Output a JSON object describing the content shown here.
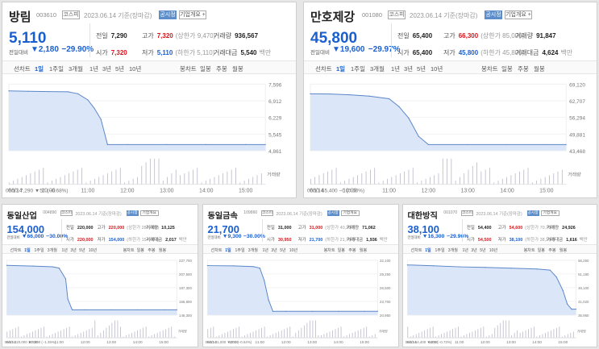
{
  "colors": {
    "rise": "#d6161c",
    "fall": "#1a5fcf",
    "area": "#dbe7f8",
    "line": "#5a86c9"
  },
  "panels": [
    {
      "name": "방림",
      "code": "003610",
      "market": "코스피",
      "date": "2023.06.14 기준(장마감)",
      "btn_info": "공시정",
      "btn_detail": "기업개요 +",
      "price": "5,110",
      "change_label": "전일대비",
      "change_icon": "down-triangle-icon",
      "change_value": "▼2,180",
      "change_rate": "−29.90%",
      "stats": {
        "prev": {
          "label": "전일",
          "value": "7,290"
        },
        "high": {
          "label": "고가",
          "value": "7,320",
          "sub": "(상한가 9,470)"
        },
        "volume": {
          "label": "거래량",
          "value": "936,567"
        },
        "open": {
          "label": "시가",
          "value": "7,320"
        },
        "low": {
          "label": "저가",
          "value": "5,110",
          "sub": "(하한가 5,110)"
        },
        "amount": {
          "label": "거래대금",
          "value": "5,540",
          "unit": "백만"
        }
      },
      "tabs": [
        "선차트",
        "1일",
        "1주일",
        "3개월",
        "1년",
        "3년",
        "5년",
        "10년"
      ],
      "candle_tabs": [
        "봉차트",
        "일봉",
        "주봉",
        "월봉"
      ],
      "selected_tab": "1일",
      "y_ticks": [
        "7,596",
        "6,912",
        "6,229",
        "5,545",
        "4,861"
      ],
      "volume_label": "거래량",
      "x_ticks": [
        "06/14",
        "10:00",
        "11:00",
        "12:00",
        "13:00",
        "14:00",
        "15:00"
      ],
      "footer": "06/13  7,290  ▼50 (−0.68%)",
      "chart_data": {
        "type": "area",
        "x": [
          "09:00",
          "09:30",
          "10:00",
          "10:30",
          "10:45",
          "11:00",
          "11:10",
          "11:20",
          "11:30",
          "12:00",
          "13:00",
          "14:00",
          "15:00",
          "15:30"
        ],
        "values": [
          7320,
          7300,
          7290,
          7280,
          7200,
          6950,
          6600,
          6150,
          5110,
          5110,
          5110,
          5110,
          5110,
          5110
        ],
        "ylim": [
          4861,
          7596
        ]
      }
    },
    {
      "name": "만호제강",
      "code": "001080",
      "market": "코스피",
      "date": "2023.06.14 기준(장마감)",
      "btn_info": "공시정",
      "btn_detail": "기업개요 +",
      "price": "45,800",
      "change_label": "전일대비",
      "change_icon": "down-triangle-icon",
      "change_value": "▼19,600",
      "change_rate": "−29.97%",
      "stats": {
        "prev": {
          "label": "전일",
          "value": "65,400"
        },
        "high": {
          "label": "고가",
          "value": "66,300",
          "sub": "(상한가 85,000)"
        },
        "volume": {
          "label": "거래량",
          "value": "91,847"
        },
        "open": {
          "label": "시가",
          "value": "65,400"
        },
        "low": {
          "label": "저가",
          "value": "45,800",
          "sub": "(하한가 45,800)"
        },
        "amount": {
          "label": "거래대금",
          "value": "4,624",
          "unit": "백만"
        }
      },
      "tabs": [
        "선차트",
        "1일",
        "1주일",
        "3개월",
        "1년",
        "3년",
        "5년",
        "10년"
      ],
      "candle_tabs": [
        "봉차트",
        "일봉",
        "주봉",
        "월봉"
      ],
      "selected_tab": "1일",
      "y_ticks": [
        "69,120",
        "62,707",
        "56,294",
        "49,881",
        "43,468"
      ],
      "volume_label": "거래량",
      "x_ticks": [
        "06/14",
        "10:00",
        "11:00",
        "12:00",
        "13:00",
        "14:00",
        "15:00"
      ],
      "footer": "06/13  65,400  −0 (0.00%)",
      "chart_data": {
        "type": "area",
        "x": [
          "09:00",
          "09:30",
          "10:00",
          "10:30",
          "11:00",
          "11:15",
          "11:30",
          "11:45",
          "12:00",
          "13:00",
          "14:00",
          "15:00",
          "15:30"
        ],
        "values": [
          65400,
          65300,
          65000,
          64500,
          63500,
          60500,
          56000,
          49000,
          45800,
          45800,
          45800,
          45800,
          45800
        ],
        "ylim": [
          43468,
          69120
        ]
      }
    },
    {
      "name": "동일산업",
      "code": "004890",
      "market": "코스피",
      "date": "2023.06.14 기준(장마감)",
      "btn_info": "공시정",
      "btn_detail": "기업개요",
      "price": "154,000",
      "change_label": "전일대비",
      "change_icon": "down-triangle-icon",
      "change_value": "▼66,000",
      "change_rate": "−30.00%",
      "stats": {
        "prev": {
          "label": "전일",
          "value": "220,000"
        },
        "high": {
          "label": "고가",
          "value": "220,000",
          "sub": "(상한가 286,000)"
        },
        "volume": {
          "label": "거래량",
          "value": "10,125"
        },
        "open": {
          "label": "시가",
          "value": "220,000"
        },
        "low": {
          "label": "저가",
          "value": "154,000",
          "sub": "(하한가 154,000)"
        },
        "amount": {
          "label": "거래대금",
          "value": "2,017",
          "unit": "백만"
        }
      },
      "tabs": [
        "선차트",
        "1일",
        "1주일",
        "3개월",
        "1년",
        "3년",
        "5년",
        "10년"
      ],
      "candle_tabs": [
        "봉차트",
        "일봉",
        "주봉",
        "월봉"
      ],
      "selected_tab": "1일",
      "y_ticks": [
        "227,700",
        "207,500",
        "187,300",
        "166,800",
        "146,300"
      ],
      "volume_label": "거래량",
      "x_ticks": [
        "06/14",
        "10:00",
        "11:00",
        "12:00",
        "13:00",
        "14:00",
        "15:00"
      ],
      "footer": "06/13  220,000  ▼3,000 (−1.35%)",
      "chart_data": {
        "type": "area",
        "x": [
          "09:00",
          "10:00",
          "10:45",
          "11:00",
          "11:15",
          "11:20",
          "11:30",
          "12:00",
          "13:00",
          "14:00",
          "15:00",
          "15:30"
        ],
        "values": [
          220000,
          219000,
          218000,
          216000,
          200000,
          170000,
          154000,
          154000,
          154000,
          154000,
          154000,
          154000
        ],
        "ylim": [
          146300,
          227700
        ]
      }
    },
    {
      "name": "동일금속",
      "code": "109860",
      "market": "코스피",
      "date": "2023.06.14 기준(장마감)",
      "btn_info": "공시정",
      "btn_detail": "기업개요",
      "price": "21,700",
      "change_label": "전일대비",
      "change_icon": "down-triangle-icon",
      "change_value": "▼9,300",
      "change_rate": "−30.00%",
      "stats": {
        "prev": {
          "label": "전일",
          "value": "31,000"
        },
        "high": {
          "label": "고가",
          "value": "31,000",
          "sub": "(상한가 40,300)"
        },
        "volume": {
          "label": "거래량",
          "value": "71,062"
        },
        "open": {
          "label": "시가",
          "value": "30,950"
        },
        "low": {
          "label": "저가",
          "value": "21,700",
          "sub": "(하한가 21,700)"
        },
        "amount": {
          "label": "거래대금",
          "value": "1,936",
          "unit": "백만"
        }
      },
      "tabs": [
        "선차트",
        "1일",
        "1주일",
        "3개월",
        "1년",
        "3년",
        "5년",
        "10년"
      ],
      "candle_tabs": [
        "봉차트",
        "일봉",
        "주봉",
        "월봉"
      ],
      "selected_tab": "1일",
      "y_ticks": [
        "32,100",
        "29,250",
        "26,500",
        "23,700",
        "20,950"
      ],
      "volume_label": "거래량",
      "x_ticks": [
        "06/14",
        "10:00",
        "11:00",
        "12:00",
        "13:00",
        "14:00",
        "15:00"
      ],
      "footer": "06/13  31,000  ▼200 (−0.64%)",
      "chart_data": {
        "type": "area",
        "x": [
          "09:00",
          "10:00",
          "10:45",
          "11:00",
          "11:10",
          "11:20",
          "11:30",
          "12:00",
          "13:00",
          "14:00",
          "15:00",
          "15:30"
        ],
        "values": [
          31000,
          30950,
          30800,
          30500,
          28000,
          24000,
          21700,
          21700,
          21700,
          21700,
          21700,
          21700
        ],
        "ylim": [
          20950,
          32100
        ]
      }
    },
    {
      "name": "대한방직",
      "code": "001070",
      "market": "코스피",
      "date": "2023.06.14 기준(장마감)",
      "btn_info": "공시정",
      "btn_detail": "기업개요",
      "price": "38,100",
      "change_label": "전일대비",
      "change_icon": "down-triangle-icon",
      "change_value": "▼16,300",
      "change_rate": "−29.96%",
      "stats": {
        "prev": {
          "label": "전일",
          "value": "54,400"
        },
        "high": {
          "label": "고가",
          "value": "54,600",
          "sub": "(상한가 70,700)"
        },
        "volume": {
          "label": "거래량",
          "value": "24,926"
        },
        "open": {
          "label": "시가",
          "value": "54,500"
        },
        "low": {
          "label": "저가",
          "value": "38,100",
          "sub": "(하한가 38,100)"
        },
        "amount": {
          "label": "거래대금",
          "value": "1,616",
          "unit": "백만"
        }
      },
      "tabs": [
        "선차트",
        "1일",
        "1주일",
        "3개월",
        "1년",
        "3년",
        "5년",
        "10년"
      ],
      "candle_tabs": [
        "봉차트",
        "일봉",
        "주봉",
        "월봉"
      ],
      "selected_tab": "1일",
      "y_ticks": [
        "56,250",
        "51,180",
        "46,100",
        "41,020",
        "35,950"
      ],
      "volume_label": "거래량",
      "x_ticks": [
        "06/14",
        "10:00",
        "11:00",
        "12:00",
        "13:00",
        "14:00",
        "15:00"
      ],
      "footer": "06/13  54,400  ▼400 (−0.73%)",
      "chart_data": {
        "type": "area",
        "x": [
          "09:00",
          "10:00",
          "11:00",
          "12:00",
          "13:00",
          "14:00",
          "14:30",
          "14:45",
          "15:00",
          "15:10",
          "15:20",
          "15:30"
        ],
        "values": [
          54500,
          54200,
          53800,
          53600,
          53300,
          53000,
          52600,
          50000,
          45000,
          40000,
          38100,
          38100
        ],
        "ylim": [
          35950,
          56250
        ]
      }
    }
  ]
}
